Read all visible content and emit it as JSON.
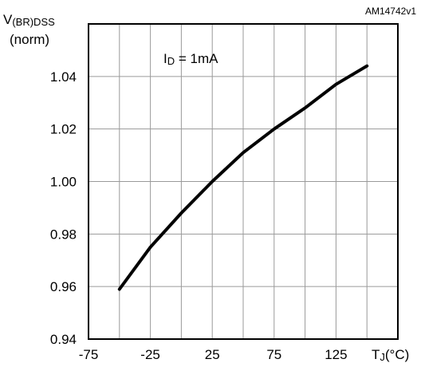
{
  "chart_data": {
    "type": "line",
    "figure_id": "AM14742v1",
    "ylabel": {
      "main": "V",
      "subscript": "(BR)DSS",
      "unit": "(norm)"
    },
    "xlabel": {
      "main": "T",
      "subscript": "J",
      "unit": "(°C)"
    },
    "annotation": {
      "main": "I",
      "subscript": "D",
      "rest": " = 1mA"
    },
    "xlim": [
      -75,
      175
    ],
    "ylim": [
      0.94,
      1.06
    ],
    "x_ticks": [
      -75,
      -50,
      -25,
      0,
      25,
      50,
      75,
      100,
      125,
      150,
      175
    ],
    "x_tick_labels": [
      {
        "value": -75,
        "label": "-75"
      },
      {
        "value": -25,
        "label": "-25"
      },
      {
        "value": 25,
        "label": "25"
      },
      {
        "value": 75,
        "label": "75"
      },
      {
        "value": 125,
        "label": "125"
      }
    ],
    "y_ticks": [
      0.94,
      0.96,
      0.98,
      1.0,
      1.02,
      1.04,
      1.06
    ],
    "y_tick_labels": [
      {
        "value": 0.94,
        "label": "0.94"
      },
      {
        "value": 0.96,
        "label": "0.96"
      },
      {
        "value": 0.98,
        "label": "0.98"
      },
      {
        "value": 1.0,
        "label": "1.00"
      },
      {
        "value": 1.02,
        "label": "1.02"
      },
      {
        "value": 1.04,
        "label": "1.04"
      }
    ],
    "grid": true,
    "series": [
      {
        "x": [
          -50,
          -25,
          0,
          25,
          50,
          75,
          100,
          125,
          150
        ],
        "y": [
          0.959,
          0.975,
          0.988,
          1.0,
          1.011,
          1.02,
          1.028,
          1.037,
          1.044
        ],
        "color": "#000000"
      }
    ]
  }
}
